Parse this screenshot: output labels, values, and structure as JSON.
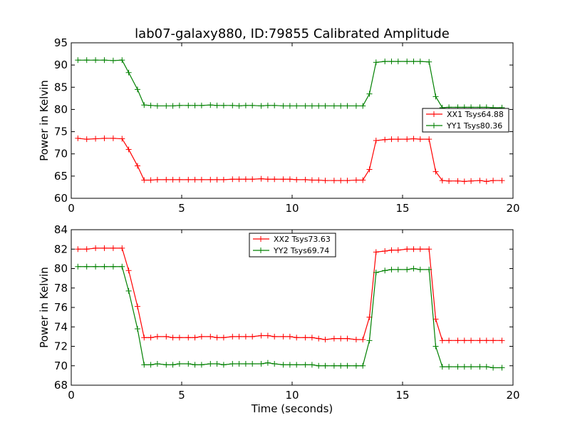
{
  "title": "lab07-galaxy880, ID:79855 Calibrated Amplitude",
  "chart_data": [
    {
      "type": "line",
      "ylabel": "Power in Kelvin",
      "xlabel": "",
      "xlim": [
        0,
        20
      ],
      "ylim": [
        60,
        95
      ],
      "xticks": [
        "0",
        "5",
        "10",
        "15",
        "20"
      ],
      "yticks": [
        "60",
        "65",
        "70",
        "75",
        "80",
        "85",
        "90",
        "95"
      ],
      "legend_position": "center-right",
      "x": [
        0.3,
        0.7,
        1.1,
        1.5,
        1.9,
        2.3,
        2.6,
        3.0,
        3.3,
        3.6,
        3.9,
        4.3,
        4.6,
        4.9,
        5.3,
        5.6,
        5.9,
        6.3,
        6.6,
        6.9,
        7.3,
        7.6,
        7.9,
        8.2,
        8.6,
        8.9,
        9.2,
        9.6,
        9.9,
        10.2,
        10.6,
        10.9,
        11.2,
        11.5,
        11.9,
        12.2,
        12.5,
        12.9,
        13.2,
        13.5,
        13.8,
        14.2,
        14.5,
        14.8,
        15.2,
        15.5,
        15.8,
        16.2,
        16.5,
        16.8,
        17.1,
        17.5,
        17.8,
        18.1,
        18.5,
        18.8,
        19.1,
        19.5
      ],
      "series": [
        {
          "name": "XX1 Tsys64.88",
          "color": "#ff0000",
          "values": [
            73.5,
            73.3,
            73.4,
            73.5,
            73.5,
            73.4,
            71.0,
            67.3,
            64.1,
            64.1,
            64.2,
            64.2,
            64.2,
            64.2,
            64.2,
            64.2,
            64.2,
            64.2,
            64.2,
            64.2,
            64.3,
            64.3,
            64.3,
            64.3,
            64.4,
            64.3,
            64.3,
            64.3,
            64.3,
            64.2,
            64.2,
            64.1,
            64.1,
            64.0,
            64.0,
            64.0,
            64.0,
            64.1,
            64.1,
            66.5,
            73.0,
            73.2,
            73.3,
            73.3,
            73.3,
            73.4,
            73.3,
            73.3,
            66.0,
            64.0,
            63.9,
            63.9,
            63.8,
            63.9,
            64.0,
            63.8,
            64.0,
            64.0
          ]
        },
        {
          "name": "YY1 Tsys80.36",
          "color": "#008000",
          "values": [
            91.1,
            91.1,
            91.1,
            91.1,
            91.0,
            91.1,
            88.3,
            84.5,
            81.0,
            80.9,
            80.8,
            80.8,
            80.8,
            80.9,
            80.9,
            80.9,
            80.9,
            81.0,
            80.9,
            80.9,
            80.9,
            80.8,
            80.9,
            80.9,
            80.8,
            80.9,
            80.9,
            80.8,
            80.8,
            80.8,
            80.8,
            80.8,
            80.8,
            80.8,
            80.8,
            80.8,
            80.8,
            80.8,
            80.8,
            83.5,
            90.6,
            90.8,
            90.8,
            90.8,
            90.8,
            90.8,
            90.8,
            90.7,
            82.9,
            80.4,
            80.5,
            80.5,
            80.5,
            80.5,
            80.5,
            80.5,
            80.4,
            80.4
          ]
        }
      ]
    },
    {
      "type": "line",
      "ylabel": "Power in Kelvin",
      "xlabel": "Time (seconds)",
      "xlim": [
        0,
        20
      ],
      "ylim": [
        68,
        84
      ],
      "xticks": [
        "0",
        "5",
        "10",
        "15",
        "20"
      ],
      "yticks": [
        "68",
        "70",
        "72",
        "74",
        "76",
        "78",
        "80",
        "82",
        "84"
      ],
      "legend_position": "upper-center",
      "x": [
        0.3,
        0.7,
        1.1,
        1.5,
        1.9,
        2.3,
        2.6,
        3.0,
        3.3,
        3.6,
        3.9,
        4.3,
        4.6,
        4.9,
        5.3,
        5.6,
        5.9,
        6.3,
        6.6,
        6.9,
        7.3,
        7.6,
        7.9,
        8.2,
        8.6,
        8.9,
        9.2,
        9.6,
        9.9,
        10.2,
        10.6,
        10.9,
        11.2,
        11.5,
        11.9,
        12.2,
        12.5,
        12.9,
        13.2,
        13.5,
        13.8,
        14.2,
        14.5,
        14.8,
        15.2,
        15.5,
        15.8,
        16.2,
        16.5,
        16.8,
        17.1,
        17.5,
        17.8,
        18.1,
        18.5,
        18.8,
        19.1,
        19.5
      ],
      "series": [
        {
          "name": "XX2 Tsys73.63",
          "color": "#ff0000",
          "values": [
            82.0,
            82.0,
            82.1,
            82.1,
            82.1,
            82.1,
            79.8,
            76.1,
            72.9,
            72.9,
            73.0,
            73.0,
            72.9,
            72.9,
            72.9,
            72.9,
            73.0,
            73.0,
            72.9,
            72.9,
            73.0,
            73.0,
            73.0,
            73.0,
            73.1,
            73.1,
            73.0,
            73.0,
            73.0,
            72.9,
            72.9,
            72.9,
            72.8,
            72.7,
            72.8,
            72.8,
            72.8,
            72.7,
            72.7,
            75.0,
            81.7,
            81.8,
            81.9,
            81.9,
            82.0,
            82.0,
            82.0,
            82.0,
            74.8,
            72.6,
            72.6,
            72.6,
            72.6,
            72.6,
            72.6,
            72.6,
            72.6,
            72.6
          ]
        },
        {
          "name": "YY2 Tsys69.74",
          "color": "#008000",
          "values": [
            80.2,
            80.2,
            80.2,
            80.2,
            80.2,
            80.2,
            77.7,
            73.8,
            70.1,
            70.1,
            70.2,
            70.1,
            70.1,
            70.2,
            70.2,
            70.1,
            70.1,
            70.2,
            70.2,
            70.1,
            70.2,
            70.2,
            70.2,
            70.2,
            70.2,
            70.3,
            70.2,
            70.1,
            70.1,
            70.1,
            70.1,
            70.1,
            70.0,
            70.0,
            70.0,
            70.0,
            70.0,
            70.0,
            70.0,
            72.6,
            79.6,
            79.8,
            79.9,
            79.9,
            79.9,
            80.0,
            79.9,
            79.9,
            72.0,
            69.9,
            69.9,
            69.9,
            69.9,
            69.9,
            69.9,
            69.9,
            69.8,
            69.8
          ]
        }
      ]
    }
  ]
}
